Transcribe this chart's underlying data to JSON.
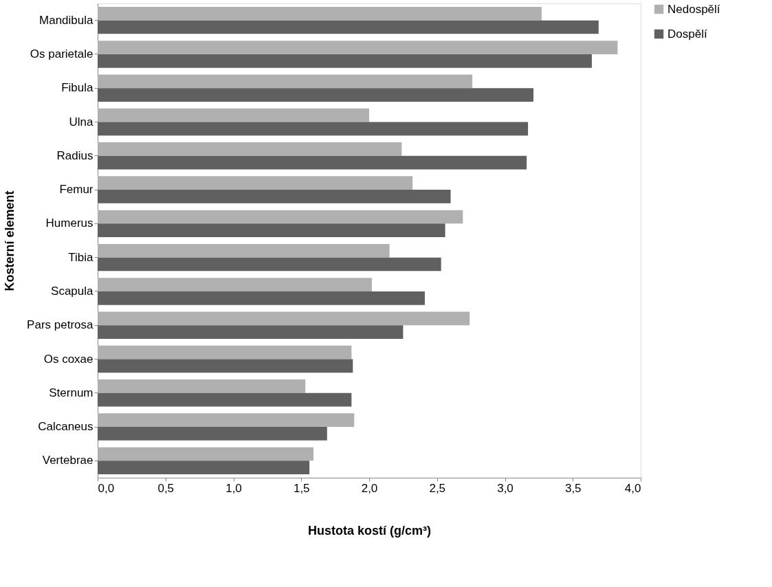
{
  "chart_data": {
    "type": "bar",
    "orientation": "horizontal",
    "xlabel": "Hustota kostí (g/cm³)",
    "ylabel": "Kosterní element",
    "categories": [
      "Mandibula",
      "Os parietale",
      "Fibula",
      "Ulna",
      "Radius",
      "Femur",
      "Humerus",
      "Tibia",
      "Scapula",
      "Pars petrosa",
      "Os coxae",
      "Sternum",
      "Calcaneus",
      "Vertebrae"
    ],
    "series": [
      {
        "name": "Nedospělí",
        "color": "#b0b0b0",
        "values": [
          3.27,
          3.83,
          2.76,
          2.0,
          2.24,
          2.32,
          2.69,
          2.15,
          2.02,
          2.74,
          1.87,
          1.53,
          1.89,
          1.59
        ]
      },
      {
        "name": "Dospělí",
        "color": "#606060",
        "values": [
          3.69,
          3.64,
          3.21,
          3.17,
          3.16,
          2.6,
          2.56,
          2.53,
          2.41,
          2.25,
          1.88,
          1.87,
          1.69,
          1.56
        ]
      }
    ],
    "xlim": [
      0,
      4
    ],
    "xticks": [
      {
        "value": 0,
        "label": "0,0"
      },
      {
        "value": 0.5,
        "label": "0,5"
      },
      {
        "value": 1,
        "label": "1,0"
      },
      {
        "value": 1.5,
        "label": "1,5"
      },
      {
        "value": 2,
        "label": "2,0"
      },
      {
        "value": 2.5,
        "label": "2,5"
      },
      {
        "value": 3,
        "label": "3,0"
      },
      {
        "value": 3.5,
        "label": "3,5"
      },
      {
        "value": 4,
        "label": "4,0"
      }
    ],
    "grid": false,
    "legend": "right"
  }
}
